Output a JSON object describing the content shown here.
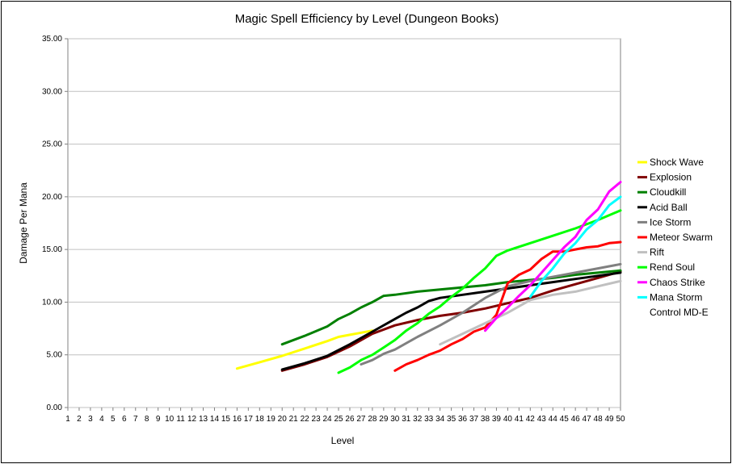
{
  "chart_data": {
    "type": "line",
    "title": "Magic Spell Efficiency by Level (Dungeon Books)",
    "xlabel": "Level",
    "ylabel": "Damage Per Mana",
    "xlim": [
      1,
      50
    ],
    "ylim": [
      0,
      35
    ],
    "y_tick_step": 5,
    "y_tick_decimals": 2,
    "grid": "horizontal",
    "legend_position": "right",
    "series": [
      {
        "name": "Shock Wave",
        "color": "#ffff00",
        "x": [
          16,
          18,
          20,
          22,
          24,
          25,
          26,
          27,
          28
        ],
        "y": [
          3.7,
          4.3,
          4.9,
          5.6,
          6.3,
          6.7,
          6.9,
          7.1,
          7.3
        ]
      },
      {
        "name": "Explosion",
        "color": "#800000",
        "x": [
          20,
          22,
          24,
          26,
          28,
          30,
          32,
          34,
          36,
          38,
          40,
          42,
          44,
          46,
          48,
          50
        ],
        "y": [
          3.5,
          4.1,
          4.8,
          5.8,
          7.0,
          7.8,
          8.3,
          8.7,
          9.0,
          9.4,
          9.9,
          10.4,
          11.1,
          11.7,
          12.3,
          12.9
        ]
      },
      {
        "name": "Cloudkill",
        "color": "#008000",
        "x": [
          20,
          22,
          24,
          25,
          26,
          27,
          28,
          29,
          30,
          32,
          34,
          36,
          38,
          40,
          42,
          44,
          46,
          48,
          50
        ],
        "y": [
          6.0,
          6.8,
          7.7,
          8.4,
          8.9,
          9.5,
          10.0,
          10.6,
          10.7,
          11.0,
          11.2,
          11.4,
          11.6,
          11.9,
          12.1,
          12.3,
          12.6,
          12.8,
          13.0
        ]
      },
      {
        "name": "Acid Ball",
        "color": "#000000",
        "x": [
          20,
          22,
          24,
          26,
          28,
          30,
          31,
          32,
          33,
          34,
          36,
          38,
          40,
          42,
          44,
          46,
          48,
          50
        ],
        "y": [
          3.6,
          4.2,
          4.9,
          6.0,
          7.2,
          8.4,
          9.0,
          9.5,
          10.1,
          10.4,
          10.7,
          11.0,
          11.3,
          11.6,
          11.9,
          12.2,
          12.5,
          12.8
        ]
      },
      {
        "name": "Ice Storm",
        "color": "#808080",
        "x": [
          27,
          28,
          29,
          30,
          32,
          34,
          36,
          38,
          40,
          42,
          44,
          46,
          48,
          50
        ],
        "y": [
          4.1,
          4.5,
          5.1,
          5.5,
          6.7,
          7.8,
          9.0,
          10.4,
          11.5,
          12.0,
          12.4,
          12.8,
          13.2,
          13.6
        ]
      },
      {
        "name": "Meteor Swarm",
        "color": "#ff0000",
        "x": [
          30,
          31,
          32,
          33,
          34,
          35,
          36,
          37,
          38,
          39,
          40,
          41,
          42,
          43,
          44,
          45,
          46,
          47,
          48,
          49,
          50
        ],
        "y": [
          3.5,
          4.1,
          4.5,
          5.0,
          5.4,
          6.0,
          6.5,
          7.2,
          7.6,
          8.8,
          11.8,
          12.6,
          13.1,
          14.1,
          14.8,
          14.8,
          15.0,
          15.2,
          15.3,
          15.6,
          15.7
        ]
      },
      {
        "name": "Rift",
        "color": "#c0c0c0",
        "x": [
          34,
          36,
          38,
          40,
          42,
          44,
          46,
          48,
          50
        ],
        "y": [
          6.0,
          7.0,
          8.0,
          9.0,
          10.2,
          10.7,
          11.0,
          11.5,
          12.0
        ]
      },
      {
        "name": "Rend Soul",
        "color": "#00ff00",
        "x": [
          25,
          26,
          27,
          28,
          29,
          30,
          31,
          32,
          33,
          34,
          35,
          36,
          37,
          38,
          39,
          40,
          42,
          44,
          46,
          48,
          50
        ],
        "y": [
          3.3,
          3.8,
          4.5,
          5.0,
          5.7,
          6.4,
          7.3,
          8.0,
          8.9,
          9.6,
          10.5,
          11.3,
          12.3,
          13.2,
          14.4,
          14.9,
          15.6,
          16.3,
          17.0,
          17.8,
          18.7
        ]
      },
      {
        "name": "Chaos Strike",
        "color": "#ff00ff",
        "x": [
          38,
          39,
          40,
          41,
          42,
          43,
          44,
          45,
          46,
          47,
          48,
          49,
          50
        ],
        "y": [
          7.3,
          8.5,
          9.5,
          10.6,
          11.6,
          12.8,
          14.0,
          15.2,
          16.2,
          17.8,
          18.8,
          20.5,
          21.4
        ]
      },
      {
        "name": "Mana Storm",
        "color": "#00ffff",
        "x": [
          42,
          43,
          44,
          45,
          46,
          47,
          48,
          49,
          50
        ],
        "y": [
          10.5,
          12.0,
          13.2,
          14.6,
          15.6,
          16.9,
          17.8,
          19.2,
          20.0
        ]
      },
      {
        "name": "Control MD-E",
        "color": "#ffffff",
        "x": [],
        "y": []
      }
    ]
  }
}
